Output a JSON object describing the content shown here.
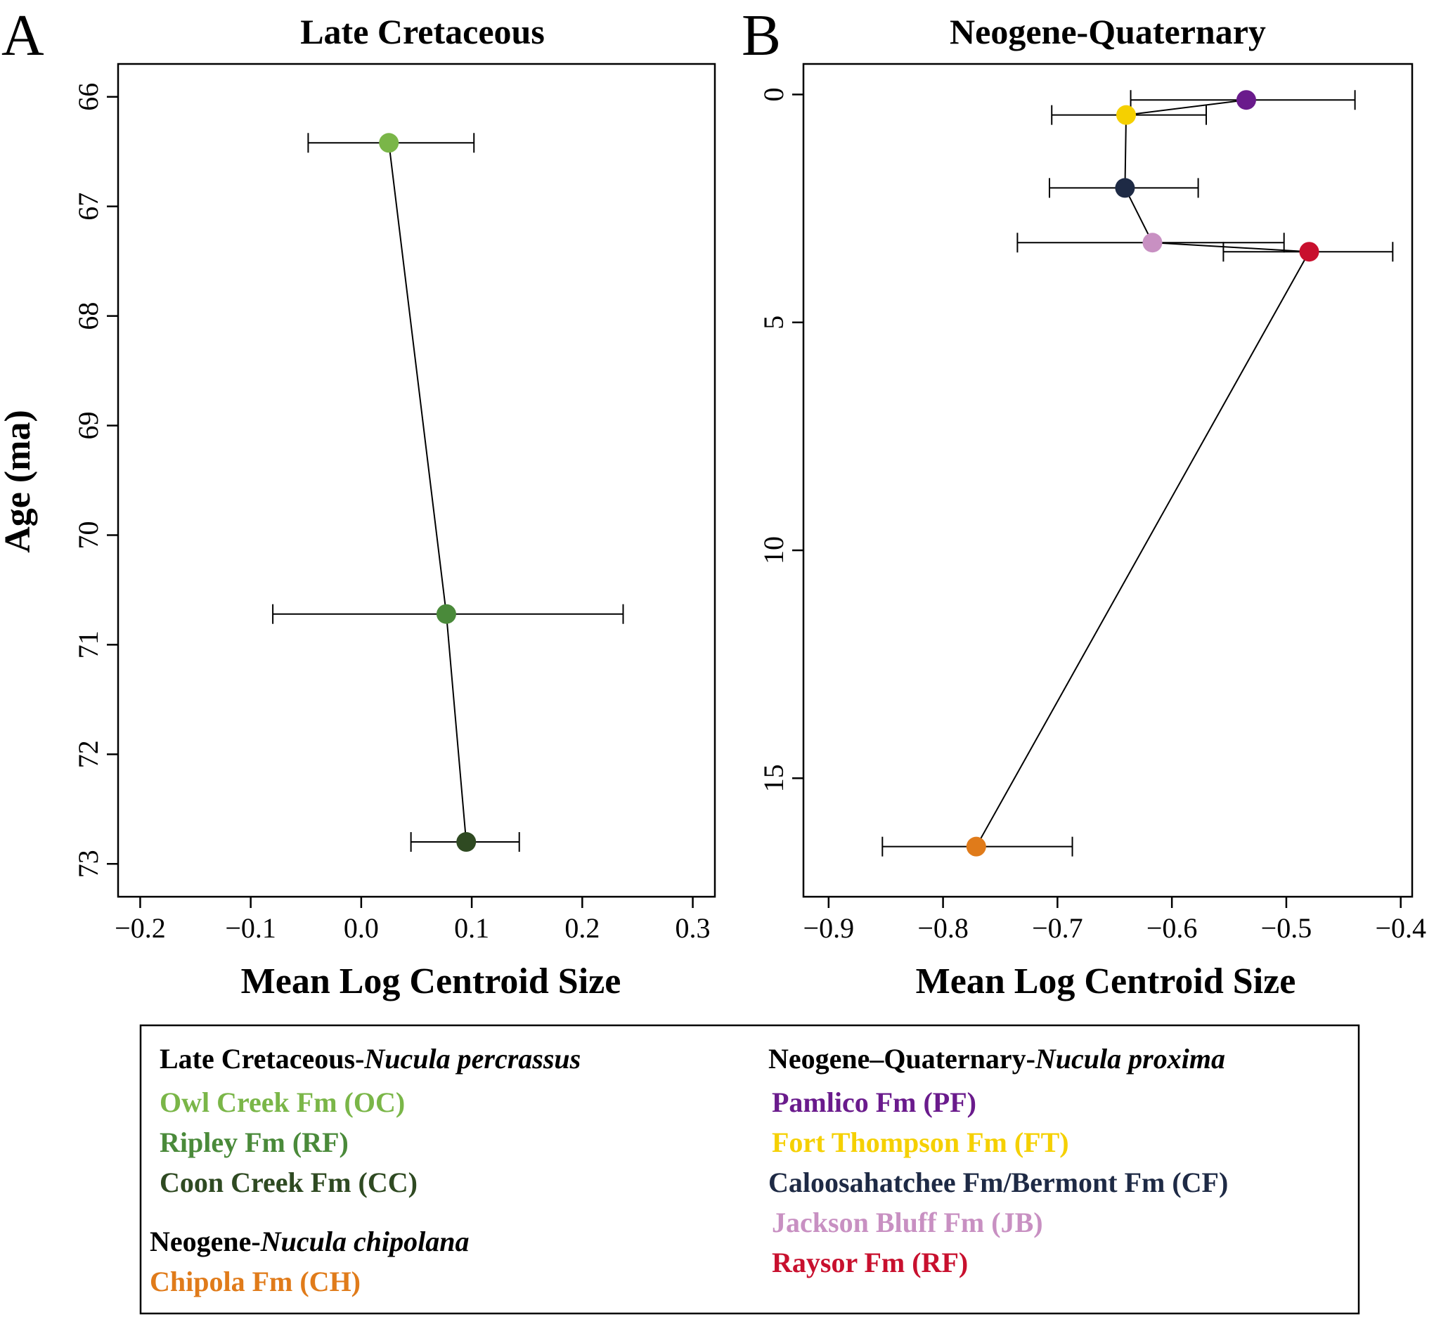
{
  "chart_data": [
    {
      "panel": "A",
      "type": "scatter",
      "title": "Late Cretaceous",
      "xlabel": "Mean Log Centroid Size",
      "ylabel": "Age (ma)",
      "xlim": [
        -0.22,
        0.32
      ],
      "ylim": [
        65.7,
        73.3
      ],
      "y_reversed": true,
      "xticks": [
        -0.2,
        -0.1,
        0.0,
        0.1,
        0.2,
        0.3
      ],
      "xtick_labels": [
        "−0.2",
        "−0.1",
        "0.0",
        "0.1",
        "0.2",
        "0.3"
      ],
      "yticks": [
        66,
        67,
        68,
        69,
        70,
        71,
        72,
        73
      ],
      "ytick_labels": [
        "66",
        "67",
        "68",
        "69",
        "70",
        "71",
        "72",
        "73"
      ],
      "points": [
        {
          "code": "OC",
          "x": 0.025,
          "y": 66.42,
          "xerr_low": -0.048,
          "xerr_high": 0.102,
          "color": "#7ab648"
        },
        {
          "code": "RF",
          "x": 0.077,
          "y": 70.72,
          "xerr_low": -0.08,
          "xerr_high": 0.237,
          "color": "#4a8a3a"
        },
        {
          "code": "CC",
          "x": 0.095,
          "y": 72.8,
          "xerr_low": 0.045,
          "xerr_high": 0.143,
          "color": "#2f4a22"
        }
      ]
    },
    {
      "panel": "B",
      "type": "scatter",
      "title": "Neogene-Quaternary",
      "xlabel": "Mean Log Centroid Size",
      "ylabel": "",
      "xlim": [
        -0.922,
        -0.39
      ],
      "ylim": [
        -0.67,
        17.6
      ],
      "y_reversed": true,
      "xticks": [
        -0.9,
        -0.8,
        -0.7,
        -0.6,
        -0.5,
        -0.4
      ],
      "xtick_labels": [
        "−0.9",
        "−0.8",
        "−0.7",
        "−0.6",
        "−0.5",
        "−0.4"
      ],
      "yticks": [
        0,
        5,
        10,
        15
      ],
      "ytick_labels": [
        "0",
        "5",
        "10",
        "15"
      ],
      "points": [
        {
          "code": "PF",
          "x": -0.535,
          "y": 0.12,
          "xerr_low": -0.636,
          "xerr_high": -0.44,
          "color": "#6a1b8c"
        },
        {
          "code": "FT",
          "x": -0.64,
          "y": 0.45,
          "xerr_low": -0.705,
          "xerr_high": -0.57,
          "color": "#f5d000"
        },
        {
          "code": "CF",
          "x": -0.641,
          "y": 2.05,
          "xerr_low": -0.707,
          "xerr_high": -0.577,
          "color": "#1e2a45"
        },
        {
          "code": "JB",
          "x": -0.617,
          "y": 3.25,
          "xerr_low": -0.735,
          "xerr_high": -0.502,
          "color": "#c890c2"
        },
        {
          "code": "RF",
          "x": -0.48,
          "y": 3.45,
          "xerr_low": -0.555,
          "xerr_high": -0.407,
          "color": "#c8102e"
        },
        {
          "code": "CH",
          "x": -0.771,
          "y": 16.5,
          "xerr_low": -0.853,
          "xerr_high": -0.687,
          "color": "#e07b1a"
        }
      ]
    }
  ],
  "legend": {
    "cretaceous": {
      "heading_plain": "Late Cretaceous-",
      "heading_italic": "Nucula percrassus",
      "items": [
        {
          "label": "Owl Creek Fm (OC)",
          "color": "#7ab648"
        },
        {
          "label": "Ripley Fm (RF)",
          "color": "#4a8a3a"
        },
        {
          "label": "Coon Creek Fm (CC)",
          "color": "#2f4a22"
        }
      ]
    },
    "neogene": {
      "heading_plain": "Neogene-",
      "heading_italic": "Nucula chipolana",
      "items": [
        {
          "label": "Chipola Fm (CH)",
          "color": "#e07b1a"
        }
      ]
    },
    "quaternary": {
      "heading_plain": "Neogene–Quaternary-",
      "heading_italic": "Nucula proxima",
      "items": [
        {
          "label": "Pamlico Fm (PF)",
          "color": "#6a1b8c"
        },
        {
          "label": "Fort Thompson Fm (FT)",
          "color": "#f5d000"
        },
        {
          "label": "Caloosahatchee Fm/Bermont Fm (CF)",
          "color": "#1e2a45"
        },
        {
          "label": "Jackson Bluff Fm (JB)",
          "color": "#c890c2"
        },
        {
          "label": "Raysor Fm (RF)",
          "color": "#c8102e"
        }
      ]
    }
  }
}
